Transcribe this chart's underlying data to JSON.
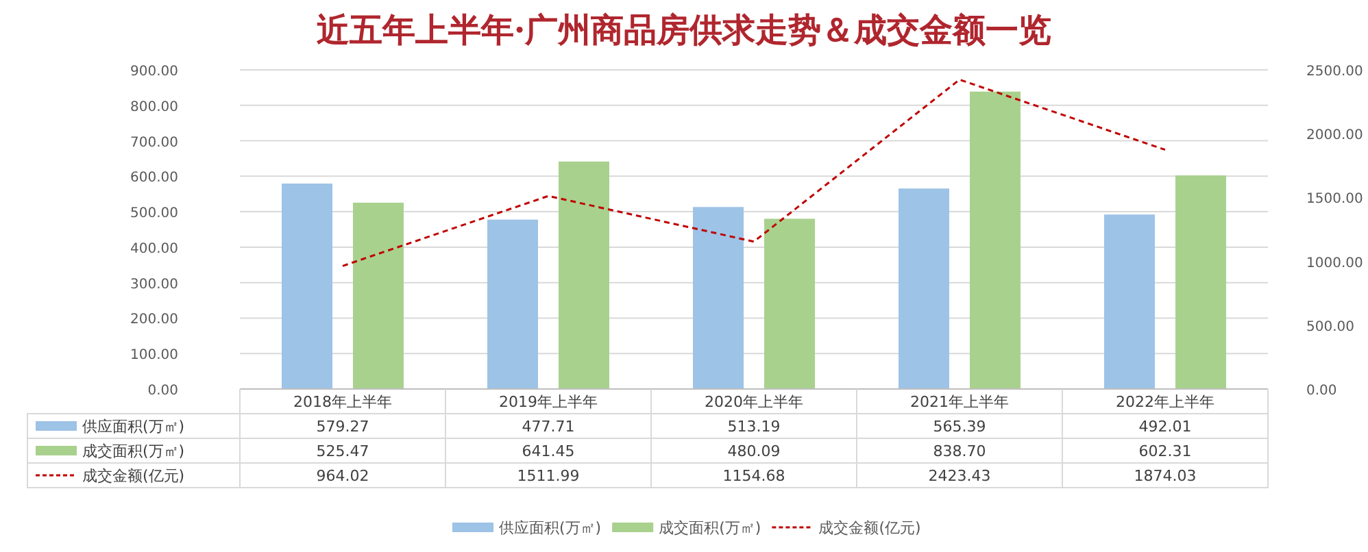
{
  "chart_data": {
    "type": "bar",
    "title": "近五年上半年·广州商品房供求走势＆成交金额一览",
    "categories": [
      "2018年上半年",
      "2019年上半年",
      "2020年上半年",
      "2021年上半年",
      "2022年上半年"
    ],
    "series": [
      {
        "name": "供应面积(万㎡)",
        "color": "#9dc3e6",
        "values": [
          579.27,
          477.71,
          513.19,
          565.39,
          492.01
        ],
        "value_labels": [
          "579.27",
          "477.71",
          "513.19",
          "565.39",
          "492.01"
        ]
      },
      {
        "name": "成交面积(万㎡)",
        "color": "#a9d18e",
        "values": [
          525.47,
          641.45,
          480.09,
          838.7,
          602.31
        ],
        "value_labels": [
          "525.47",
          "641.45",
          "480.09",
          "838.70",
          "602.31"
        ]
      },
      {
        "name": "成交金额(亿元)",
        "type": "line",
        "axis": "y2",
        "color": "#c00000",
        "line_style": "dashed",
        "values": [
          964.02,
          1511.99,
          1154.68,
          2423.43,
          1874.03
        ],
        "value_labels": [
          "964.02",
          "1511.99",
          "1154.68",
          "2423.43",
          "1874.03"
        ]
      }
    ],
    "ylim": [
      0,
      900
    ],
    "yticks": [
      {
        "value": 0,
        "label": "0.00"
      },
      {
        "value": 100,
        "label": "100.00"
      },
      {
        "value": 200,
        "label": "200.00"
      },
      {
        "value": 300,
        "label": "300.00"
      },
      {
        "value": 400,
        "label": "400.00"
      },
      {
        "value": 500,
        "label": "500.00"
      },
      {
        "value": 600,
        "label": "600.00"
      },
      {
        "value": 700,
        "label": "700.00"
      },
      {
        "value": 800,
        "label": "800.00"
      },
      {
        "value": 900,
        "label": "900.00"
      }
    ],
    "y2lim": [
      0,
      2500
    ],
    "y2ticks": [
      {
        "value": 0,
        "label": "0.00"
      },
      {
        "value": 500,
        "label": "500.00"
      },
      {
        "value": 1000,
        "label": "1000.00"
      },
      {
        "value": 1500,
        "label": "1500.00"
      },
      {
        "value": 2000,
        "label": "2000.00"
      },
      {
        "value": 2500,
        "label": "2500.00"
      }
    ],
    "grid": "y",
    "legend": "bottom"
  }
}
